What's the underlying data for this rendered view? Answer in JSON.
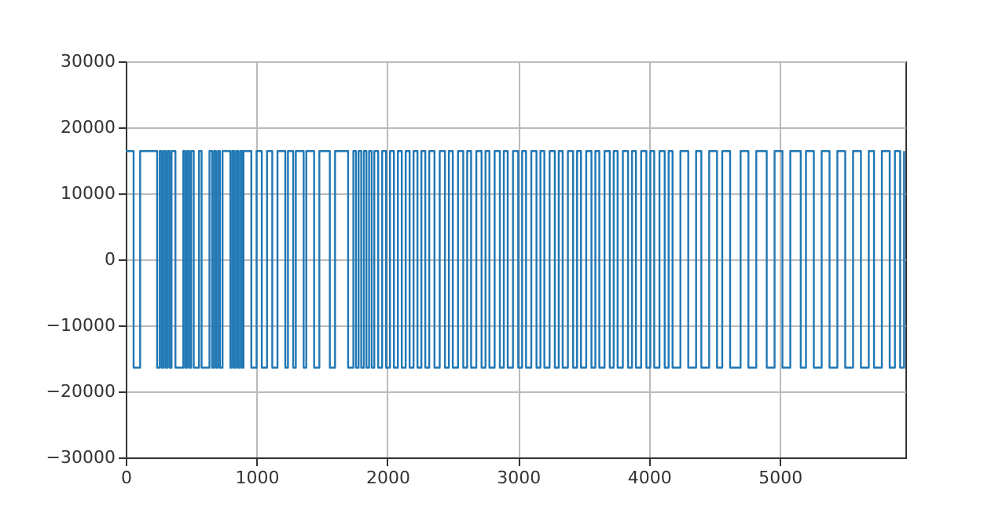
{
  "chart_data": {
    "type": "step",
    "x": [
      0,
      60,
      110,
      240,
      260,
      275,
      290,
      305,
      320,
      335,
      350,
      380,
      440,
      455,
      470,
      485,
      500,
      520,
      560,
      580,
      640,
      660,
      675,
      690,
      705,
      720,
      740,
      800,
      815,
      830,
      845,
      860,
      875,
      890,
      900,
      960,
      1000,
      1040,
      1080,
      1120,
      1160,
      1220,
      1240,
      1280,
      1300,
      1360,
      1380,
      1440,
      1480,
      1560,
      1600,
      1700,
      1740,
      1760,
      1780,
      1800,
      1820,
      1840,
      1860,
      1880,
      1900,
      1930,
      1960,
      1990,
      2020,
      2050,
      2080,
      2110,
      2140,
      2170,
      2200,
      2230,
      2260,
      2290,
      2320,
      2360,
      2400,
      2440,
      2470,
      2500,
      2540,
      2580,
      2610,
      2640,
      2680,
      2720,
      2750,
      2780,
      2820,
      2860,
      2890,
      2920,
      2960,
      3000,
      3030,
      3060,
      3100,
      3140,
      3170,
      3200,
      3240,
      3280,
      3310,
      3340,
      3380,
      3420,
      3450,
      3480,
      3520,
      3560,
      3590,
      3620,
      3660,
      3700,
      3730,
      3760,
      3800,
      3840,
      3870,
      3900,
      3940,
      3980,
      4010,
      4040,
      4080,
      4120,
      4150,
      4180,
      4240,
      4300,
      4360,
      4400,
      4460,
      4520,
      4560,
      4620,
      4700,
      4760,
      4820,
      4900,
      4960,
      5020,
      5080,
      5160,
      5200,
      5260,
      5320,
      5380,
      5440,
      5500,
      5560,
      5620,
      5680,
      5720,
      5780,
      5840,
      5880,
      5920,
      5950
    ],
    "series": [
      {
        "color": "#1f77b4",
        "values": [
          16400,
          -16400,
          16400,
          -16400,
          16400,
          -16400,
          16400,
          -16400,
          16400,
          -16400,
          16400,
          -16400,
          16400,
          -16400,
          16400,
          -16400,
          16400,
          -16400,
          16400,
          -16400,
          16400,
          -16400,
          16400,
          -16400,
          16400,
          -16400,
          16400,
          -16400,
          16400,
          -16400,
          16400,
          -16400,
          16400,
          -16400,
          16400,
          -16400,
          16400,
          -16400,
          16400,
          -16400,
          16400,
          -16400,
          16400,
          -16400,
          16400,
          -16400,
          16400,
          -16400,
          16400,
          -16400,
          16400,
          -16400,
          16400,
          -16400,
          16400,
          -16400,
          16400,
          -16400,
          16400,
          -16400,
          16400,
          -16400,
          16400,
          -16400,
          16400,
          -16400,
          16400,
          -16400,
          16400,
          -16400,
          16400,
          -16400,
          16400,
          -16400,
          16400,
          -16400,
          16400,
          -16400,
          16400,
          -16400,
          16400,
          -16400,
          16400,
          -16400,
          16400,
          -16400,
          16400,
          -16400,
          16400,
          -16400,
          16400,
          -16400,
          16400,
          -16400,
          16400,
          -16400,
          16400,
          -16400,
          16400,
          -16400,
          16400,
          -16400,
          16400,
          -16400,
          16400,
          -16400,
          16400,
          -16400,
          16400,
          -16400,
          16400,
          -16400,
          16400,
          -16400,
          16400,
          -16400,
          16400,
          -16400,
          16400,
          -16400,
          16400,
          -16400,
          16400,
          -16400,
          16400,
          -16400,
          16400,
          -16400,
          16400,
          -16400,
          16400,
          -16400,
          16400,
          -16400,
          16400,
          -16400,
          16400,
          -16400,
          16400,
          -16400,
          16400,
          -16400,
          16400,
          -16400,
          16400,
          -16400,
          16400,
          -16400,
          16400,
          -16400,
          16400,
          -16400,
          16400,
          -16400,
          16400,
          -16400,
          16400,
          -16400,
          16400
        ]
      }
    ],
    "xlim": [
      0,
      5960
    ],
    "xticks": [
      0,
      1000,
      2000,
      3000,
      4000,
      5000
    ],
    "ylim": [
      -30000,
      30000
    ],
    "yticks": [
      -30000,
      -20000,
      -10000,
      0,
      10000,
      20000,
      30000
    ],
    "grid": true
  }
}
